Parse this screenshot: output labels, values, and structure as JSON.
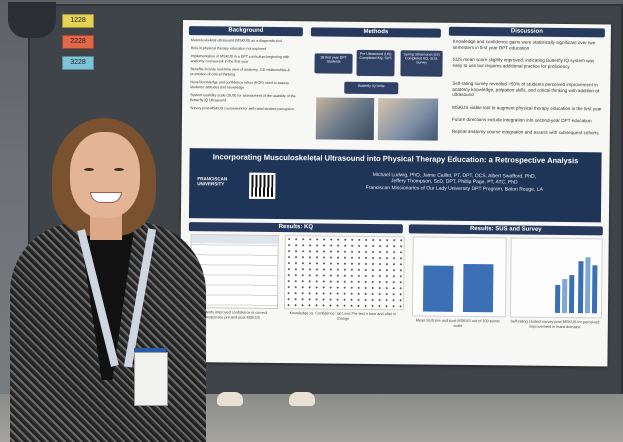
{
  "room_tags": [
    "1228",
    "2228",
    "3228"
  ],
  "poster": {
    "background_header": "Background",
    "methods_header": "Methods",
    "discussion_header": "Discussion",
    "results_kq_header": "Results: KQ",
    "results_sus_header": "Results: SUS and Survey",
    "title": "Incorporating Musculoskeletal Ultrasound into Physical Therapy Education: a Retrospective Analysis",
    "authors": [
      "Michael Ludwig, PhD, Jaime Caillet, PT, DPT, OCS, Albert Swafford, PhD,",
      "Jeffery Thompson, ScD, DPT, Phillip Page, PT, ATC, PhD",
      "Franciscan Missionaries of Our Lady University DPT Program, Baton Rouge, LA"
    ],
    "logo_text": [
      "FRANCISCAN",
      "UNIVERSITY"
    ],
    "background_bullets": [
      "Musculoskeletal ultrasound (MSKUS) as a diagnostic tool",
      "Role in physical therapy education not explored",
      "Implementation of MSKUS in a DPT curriculum beginning with anatomy coursework in the first year",
      "Benefits include real-time view of anatomy, 3-D relationships & promotion of critical thinking",
      "Novel knowledge and confidence ratios (KCR) used to assess students' attitudes and knowledge",
      "System usability scale (SUS) for assessment of the usability of the Butterfly iQ Ultrasound",
      "Survey post-MSKUS coursework for self-rated student perception"
    ],
    "methods_flow": [
      "39 first year DPT Students",
      "Pre Ultrasound (US) Completed KQ, SUS",
      "Spring Ultrasound (US) Completed KQ, SUS, Survey"
    ],
    "methods_device": "Butterfly IQ Units",
    "discussion_bullets": [
      "Knowledge and confidence gains were statistically significant over two semesters in first year DPT education",
      "SUS mean score slightly improved, indicating Butterfly IQ system was easy to use but requires additional practice for proficiency",
      "Self-rating survey revealed >50% of students perceived improvement in anatomy knowledge, palpation skills, and critical thinking with addition of ultrasound",
      "MSKUS viable tool to augment physical therapy education in the first year",
      "Future directions include integration into second-year DPT education",
      "Repeat anatomy course integration and assess with subsequent cohorts"
    ],
    "kq_caption": "Students improved confidence in correct responses pre and post MSKUS",
    "scatter_caption": "Knowledge vs. Confidence: (a) Less Pre-test n time and after in change",
    "sus_caption": "Mean SUS pre and post MSKUS out of 100 points scale",
    "survey_caption": "Self-rating student survey post-MSKUS for perceived improvement in listed domains"
  }
}
